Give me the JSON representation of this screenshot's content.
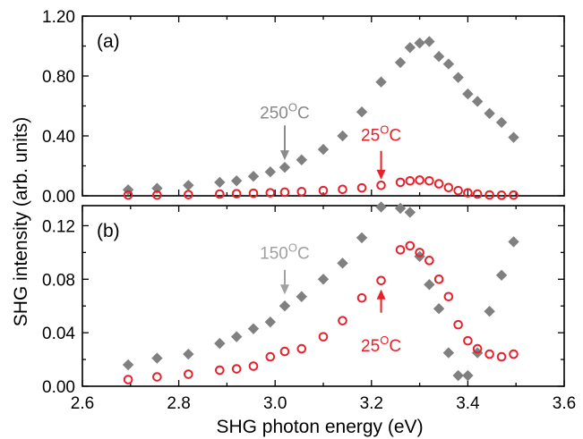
{
  "chart_data": [
    {
      "panel_label": "(a)",
      "type": "scatter",
      "ylim": [
        0,
        1.2
      ],
      "y_ticks": [
        "0.00",
        "0.40",
        "0.80",
        "1.20"
      ],
      "y_tick_values": [
        0,
        0.4,
        0.8,
        1.2
      ],
      "xlim": [
        2.6,
        3.6
      ],
      "grid": false,
      "series": [
        {
          "name": "250°C",
          "marker": "filled-diamond",
          "color": "#808080",
          "x": [
            2.695,
            2.755,
            2.82,
            2.885,
            2.92,
            2.955,
            2.99,
            3.02,
            3.055,
            3.1,
            3.14,
            3.18,
            3.22,
            3.26,
            3.28,
            3.3,
            3.32,
            3.34,
            3.36,
            3.38,
            3.4,
            3.42,
            3.445,
            3.47,
            3.495
          ],
          "y": [
            0.04,
            0.05,
            0.07,
            0.09,
            0.1,
            0.13,
            0.16,
            0.19,
            0.24,
            0.31,
            0.4,
            0.56,
            0.76,
            0.89,
            0.99,
            1.02,
            1.03,
            0.93,
            0.88,
            0.79,
            0.68,
            0.63,
            0.55,
            0.49,
            0.39
          ]
        },
        {
          "name": "25°C",
          "marker": "open-circle",
          "color": "#e8202a",
          "x": [
            2.695,
            2.755,
            2.82,
            2.885,
            2.92,
            2.955,
            2.99,
            3.02,
            3.055,
            3.1,
            3.14,
            3.18,
            3.22,
            3.26,
            3.28,
            3.3,
            3.32,
            3.34,
            3.36,
            3.38,
            3.4,
            3.42,
            3.445,
            3.47,
            3.495
          ],
          "y": [
            0.005,
            0.005,
            0.008,
            0.012,
            0.014,
            0.017,
            0.02,
            0.024,
            0.028,
            0.035,
            0.043,
            0.053,
            0.07,
            0.09,
            0.1,
            0.105,
            0.1,
            0.08,
            0.055,
            0.035,
            0.02,
            0.012,
            0.006,
            0.004,
            0.005
          ]
        }
      ],
      "annotations": [
        {
          "base": "250",
          "sup": "O",
          "unit": "C",
          "color": "#8a8a8a",
          "arrow_x": 3.02,
          "arrow_from_y": 0.47,
          "arrow_to_y": 0.25,
          "text_y": 0.47,
          "arrow_dir": "down"
        },
        {
          "base": "25",
          "sup": "O",
          "unit": "C",
          "color": "#e8202a",
          "arrow_x": 3.22,
          "arrow_from_y": 0.3,
          "arrow_to_y": 0.12,
          "text_y": 0.32,
          "arrow_dir": "down"
        }
      ]
    },
    {
      "panel_label": "(b)",
      "type": "scatter",
      "ylim": [
        0,
        0.135
      ],
      "y_ticks": [
        "0.00",
        "0.04",
        "0.08",
        "0.12"
      ],
      "y_tick_values": [
        0,
        0.04,
        0.08,
        0.12
      ],
      "xlim": [
        2.6,
        3.6
      ],
      "x_ticks": [
        "2.6",
        "2.8",
        "3.0",
        "3.2",
        "3.4",
        "3.6"
      ],
      "x_tick_values": [
        2.6,
        2.8,
        3.0,
        3.2,
        3.4,
        3.6
      ],
      "xlabel": "SHG photon energy (eV)",
      "grid": false,
      "series": [
        {
          "name": "150°C",
          "marker": "filled-diamond",
          "color": "#808080",
          "x": [
            2.695,
            2.755,
            2.82,
            2.885,
            2.92,
            2.955,
            2.99,
            3.02,
            3.055,
            3.1,
            3.14,
            3.18,
            3.22,
            3.26,
            3.28,
            3.3,
            3.32,
            3.34,
            3.36,
            3.38,
            3.4,
            3.42,
            3.445,
            3.47,
            3.495
          ],
          "y": [
            0.016,
            0.021,
            0.024,
            0.032,
            0.037,
            0.043,
            0.048,
            0.06,
            0.067,
            0.08,
            0.092,
            0.111,
            0.134,
            0.133,
            0.13,
            0.097,
            0.076,
            0.058,
            0.025,
            0.008,
            0.008,
            0.025,
            0.056,
            0.083,
            0.108
          ]
        },
        {
          "name": "25°C",
          "marker": "open-circle",
          "color": "#e8202a",
          "x": [
            2.695,
            2.755,
            2.82,
            2.885,
            2.92,
            2.955,
            2.99,
            3.02,
            3.055,
            3.1,
            3.14,
            3.18,
            3.22,
            3.26,
            3.28,
            3.3,
            3.32,
            3.34,
            3.36,
            3.38,
            3.4,
            3.42,
            3.445,
            3.47,
            3.495
          ],
          "y": [
            0.005,
            0.007,
            0.009,
            0.012,
            0.013,
            0.015,
            0.022,
            0.026,
            0.028,
            0.037,
            0.049,
            0.066,
            0.079,
            0.102,
            0.105,
            0.1,
            0.094,
            0.08,
            0.067,
            0.046,
            0.034,
            0.028,
            0.024,
            0.022,
            0.024
          ]
        }
      ],
      "annotations": [
        {
          "base": "150",
          "sup": "O",
          "unit": "C",
          "color": "#a0a0a0",
          "arrow_x": 3.02,
          "arrow_from_y": 0.087,
          "arrow_to_y": 0.07,
          "text_y": 0.09,
          "arrow_dir": "down"
        },
        {
          "base": "25",
          "sup": "O",
          "unit": "C",
          "color": "#e8202a",
          "arrow_x": 3.22,
          "arrow_from_y": 0.055,
          "arrow_to_y": 0.071,
          "text_y": 0.038,
          "arrow_dir": "up"
        }
      ]
    }
  ],
  "shared": {
    "ylabel": "SHG intensity (arb. units)",
    "axis_color": "#000000"
  }
}
